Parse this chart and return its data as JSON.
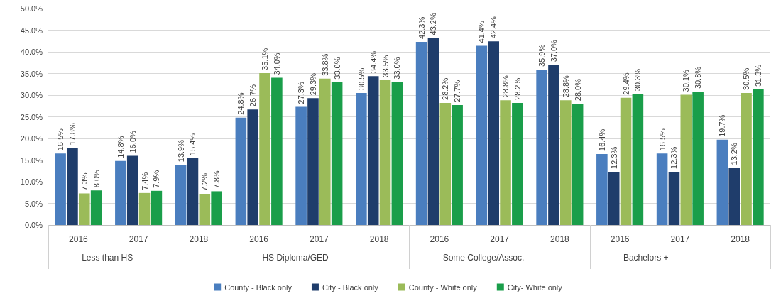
{
  "chart_data": {
    "type": "bar",
    "categories": [
      "2016",
      "2017",
      "2018",
      "2016",
      "2017",
      "2018",
      "2016",
      "2017",
      "2018",
      "2016",
      "2017",
      "2018"
    ],
    "annotations": [
      "Less than HS",
      "HS Diploma/GED",
      "Some College/Assoc.",
      "Bachelors +"
    ],
    "series": [
      {
        "name": "County - Black only",
        "color": "#4a7ebf",
        "values": [
          16.5,
          14.8,
          13.9,
          24.8,
          27.3,
          30.5,
          42.3,
          41.4,
          35.9,
          16.4,
          16.5,
          19.7
        ],
        "value_labels": [
          "16.5%",
          "14.8%",
          "13.9%",
          "24.8%",
          "27.3%",
          "30.5%",
          "42.3%",
          "41.4%",
          "35.9%",
          "16.4%",
          "16.5%",
          "19.7%"
        ]
      },
      {
        "name": "City - Black only",
        "color": "#1f3d6b",
        "values": [
          17.8,
          16.0,
          15.4,
          26.7,
          29.3,
          34.4,
          43.2,
          42.4,
          37.0,
          12.3,
          12.3,
          13.2
        ],
        "value_labels": [
          "17.8%",
          "16.0%",
          "15.4%",
          "26.7%",
          "29.3%",
          "34.4%",
          "43.2%",
          "42.4%",
          "37.0%",
          "12.3%",
          "12.3%",
          "13.2%"
        ]
      },
      {
        "name": "County - White only",
        "color": "#9bbb59",
        "values": [
          7.3,
          7.4,
          7.2,
          35.1,
          33.8,
          33.5,
          28.2,
          28.8,
          28.8,
          29.4,
          30.1,
          30.5
        ],
        "value_labels": [
          "7.3%",
          "7.4%",
          "7.2%",
          "35.1%",
          "33.8%",
          "33.5%",
          "28.2%",
          "28.8%",
          "28.8%",
          "29.4%",
          "30.1%",
          "30.5%"
        ]
      },
      {
        "name": "City- White only",
        "color": "#1a9e4a",
        "values": [
          8.0,
          7.9,
          7.8,
          34.0,
          33.0,
          33.0,
          27.7,
          28.2,
          28.0,
          30.3,
          30.8,
          31.3
        ],
        "value_labels": [
          "8.0%",
          "7.9%",
          "7.8%",
          "34.0%",
          "33.0%",
          "33.0%",
          "27.7%",
          "28.2%",
          "28.0%",
          "30.3%",
          "30.8%",
          "31.3%"
        ]
      }
    ],
    "ylim": [
      0,
      50
    ],
    "yticks": [
      {
        "value": 0,
        "label": "0.0%"
      },
      {
        "value": 5,
        "label": "5.0%"
      },
      {
        "value": 10,
        "label": "10.0%"
      },
      {
        "value": 15,
        "label": "15.0%"
      },
      {
        "value": 20,
        "label": "20.0%"
      },
      {
        "value": 25,
        "label": "25.0%"
      },
      {
        "value": 30,
        "label": "30.0%"
      },
      {
        "value": 35,
        "label": "35.0%"
      },
      {
        "value": 40,
        "label": "40.0%"
      },
      {
        "value": 45,
        "label": "45.0%"
      },
      {
        "value": 50,
        "label": "50.0%"
      }
    ],
    "grid": "y",
    "legend": "bottom"
  }
}
